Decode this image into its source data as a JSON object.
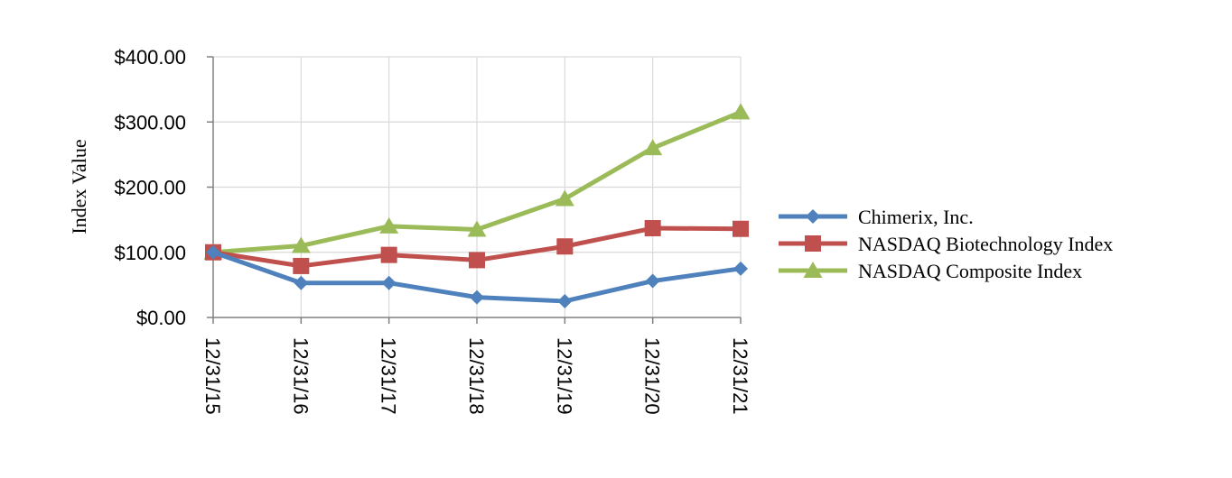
{
  "chart_data": {
    "type": "line",
    "title": "",
    "xlabel": "",
    "ylabel": "Index Value",
    "categories": [
      "12/31/15",
      "12/31/16",
      "12/31/17",
      "12/31/18",
      "12/31/19",
      "12/31/20",
      "12/31/21"
    ],
    "ylim": [
      0,
      400
    ],
    "yticks": [
      0,
      100,
      200,
      300,
      400
    ],
    "ytick_labels": [
      "$0.00",
      "$100.00",
      "$200.00",
      "$300.00",
      "$400.00"
    ],
    "grid": true,
    "legend_position": "right",
    "series": [
      {
        "name": "Chimerix, Inc.",
        "values": [
          100,
          53,
          53,
          31,
          25,
          56,
          75
        ],
        "color": "#4F81BD",
        "marker": "diamond"
      },
      {
        "name": "NASDAQ Biotechnology Index",
        "values": [
          100,
          79,
          96,
          88,
          109,
          137,
          136
        ],
        "color": "#C0504D",
        "marker": "square"
      },
      {
        "name": "NASDAQ Composite Index",
        "values": [
          100,
          110,
          140,
          135,
          182,
          260,
          315
        ],
        "color": "#9BBB59",
        "marker": "triangle"
      }
    ]
  }
}
